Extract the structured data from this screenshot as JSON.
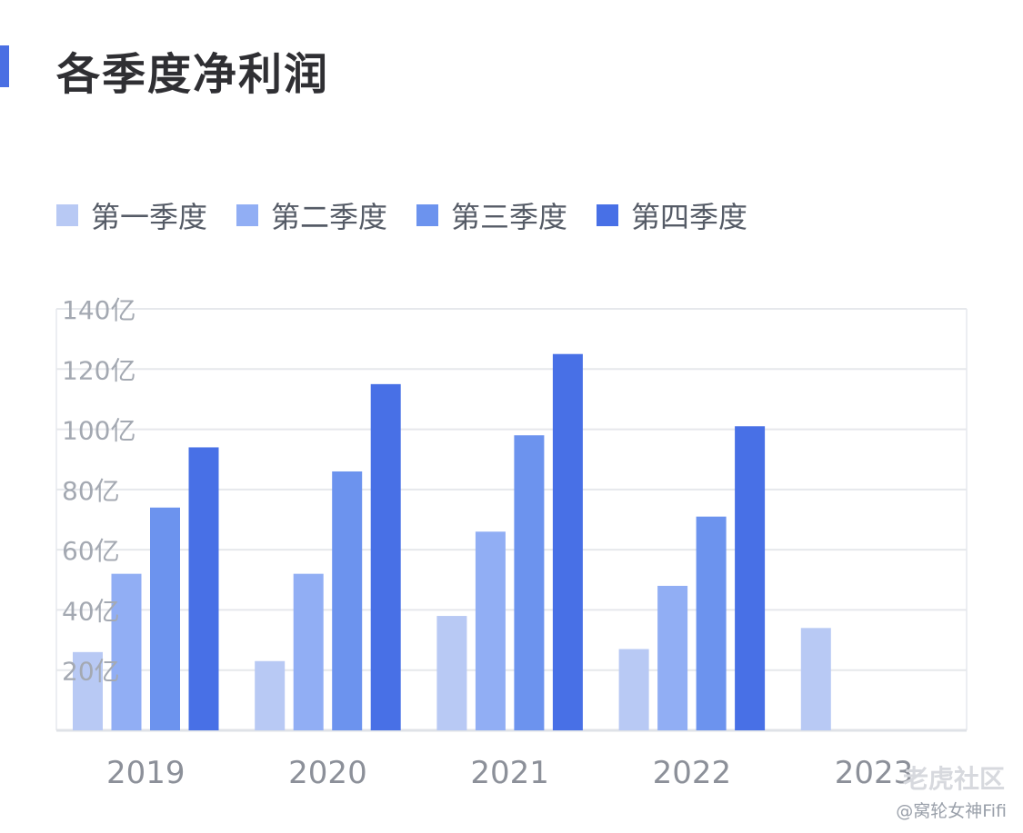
{
  "title": "各季度净利润",
  "watermark": "老虎社区",
  "credit": "@窝轮女神Fifi",
  "chart_data": {
    "type": "bar",
    "categories": [
      "2019",
      "2020",
      "2021",
      "2022",
      "2023"
    ],
    "series": [
      {
        "name": "第一季度",
        "color": "#b8c9f4",
        "values": [
          26,
          23,
          38,
          27,
          34
        ]
      },
      {
        "name": "第二季度",
        "color": "#91aef4",
        "values": [
          52,
          52,
          66,
          48,
          null
        ]
      },
      {
        "name": "第三季度",
        "color": "#6c93ee",
        "values": [
          74,
          86,
          98,
          71,
          null
        ]
      },
      {
        "name": "第四季度",
        "color": "#4870e6",
        "values": [
          94,
          115,
          125,
          101,
          null
        ]
      }
    ],
    "yticks": [
      {
        "value": 20,
        "label": "20亿"
      },
      {
        "value": 40,
        "label": "40亿"
      },
      {
        "value": 60,
        "label": "60亿"
      },
      {
        "value": 80,
        "label": "80亿"
      },
      {
        "value": 100,
        "label": "100亿"
      },
      {
        "value": 120,
        "label": "120亿"
      },
      {
        "value": 140,
        "label": "140亿"
      }
    ],
    "ylim": [
      0,
      140
    ],
    "grid": true,
    "legend_position": "top-left"
  }
}
